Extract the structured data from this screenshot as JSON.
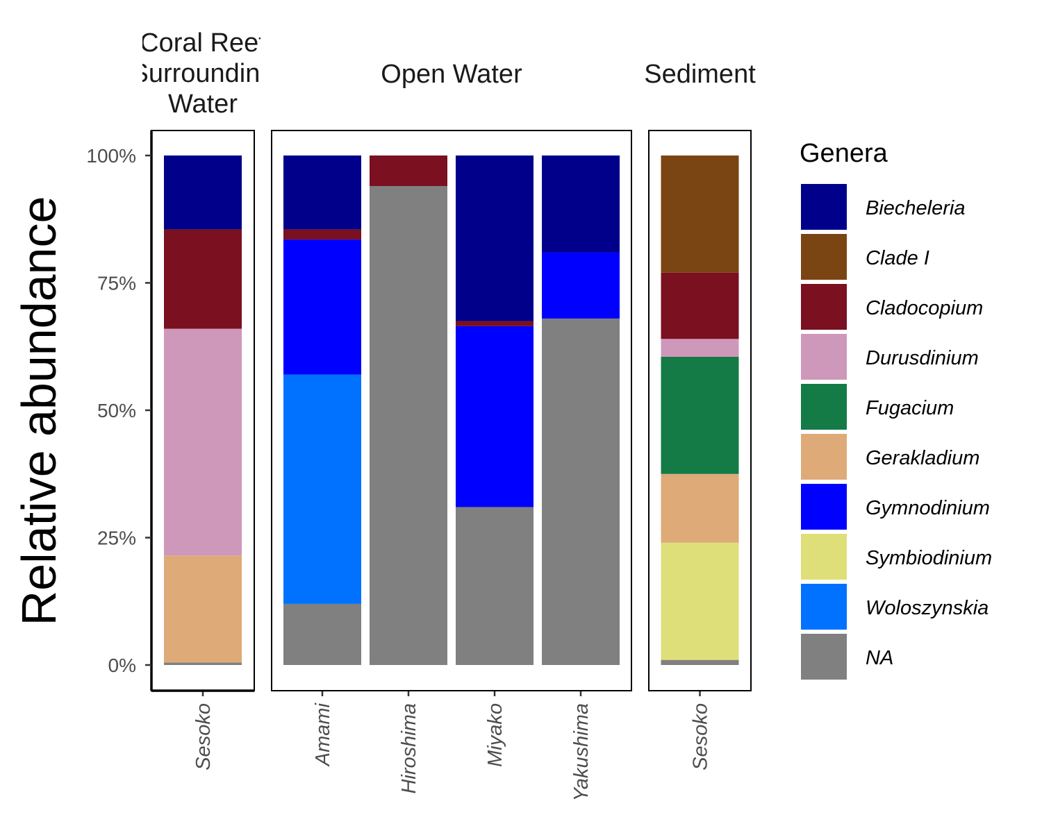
{
  "chart_data": {
    "type": "bar",
    "stacked": true,
    "ylabel": "Relative abundance",
    "ylim": [
      0,
      1
    ],
    "yticks": [
      0,
      0.25,
      0.5,
      0.75,
      1.0
    ],
    "ytick_labels": [
      "0%",
      "25%",
      "50%",
      "75%",
      "100%"
    ],
    "legend": {
      "title": "Genera",
      "position": "right",
      "entries": [
        "Biecheleria",
        "Clade I",
        "Cladocopium",
        "Durusdinium",
        "Fugacium",
        "Gerakladium",
        "Gymnodinium",
        "Symbiodinium",
        "Woloszynskia",
        "NA"
      ],
      "colors": [
        "#00008B",
        "#7B4413",
        "#7A1020",
        "#CE98BA",
        "#147A46",
        "#DEAA78",
        "#0000FF",
        "#DEDF78",
        "#0072FF",
        "#808080"
      ]
    },
    "stack_order_bottom_to_top": [
      "NA",
      "Woloszynskia",
      "Symbiodinium",
      "Gymnodinium",
      "Gerakladium",
      "Fugacium",
      "Durusdinium",
      "Cladocopium",
      "Clade I",
      "Biecheleria"
    ],
    "facets": [
      {
        "title_lines": [
          "Coral Reef",
          "Surrounding",
          "Water"
        ],
        "bars": [
          {
            "category": "Sesoko",
            "values": {
              "NA": 0.005,
              "Gerakladium": 0.21,
              "Durusdinium": 0.445,
              "Cladocopium": 0.195,
              "Biecheleria": 0.145
            }
          }
        ]
      },
      {
        "title_lines": [
          "Open Water"
        ],
        "bars": [
          {
            "category": "Amami",
            "values": {
              "NA": 0.12,
              "Woloszynskia": 0.45,
              "Gymnodinium": 0.265,
              "Cladocopium": 0.02,
              "Biecheleria": 0.145
            }
          },
          {
            "category": "Hiroshima",
            "values": {
              "NA": 0.94,
              "Cladocopium": 0.06
            }
          },
          {
            "category": "Miyako",
            "values": {
              "NA": 0.31,
              "Gymnodinium": 0.355,
              "Cladocopium": 0.01,
              "Biecheleria": 0.325
            }
          },
          {
            "category": "Yakushima",
            "values": {
              "NA": 0.68,
              "Gymnodinium": 0.13,
              "Biecheleria": 0.19
            }
          }
        ]
      },
      {
        "title_lines": [
          "Sediment"
        ],
        "bars": [
          {
            "category": "Sesoko",
            "values": {
              "NA": 0.01,
              "Symbiodinium": 0.23,
              "Gerakladium": 0.135,
              "Fugacium": 0.23,
              "Durusdinium": 0.035,
              "Cladocopium": 0.13,
              "Clade I": 0.23
            }
          }
        ]
      }
    ]
  }
}
